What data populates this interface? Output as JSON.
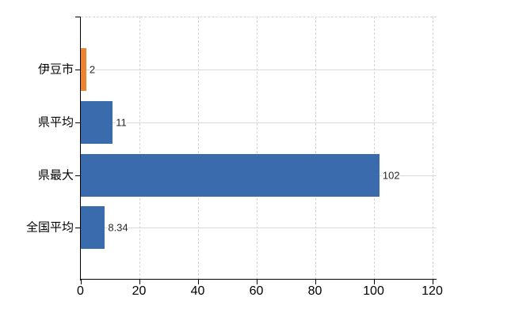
{
  "chart_data": {
    "type": "bar",
    "orientation": "horizontal",
    "title": "",
    "xlabel": "",
    "ylabel": "",
    "categories": [
      "伊豆市",
      "県平均",
      "県最大",
      "全国平均"
    ],
    "values": [
      2,
      11,
      102,
      8.34
    ],
    "value_labels": [
      "2",
      "11",
      "102",
      "8.34"
    ],
    "series": [
      {
        "name": "value",
        "values": [
          2,
          11,
          102,
          8.34
        ],
        "bar_colors": [
          "#ec8532",
          "#3a6bad",
          "#3a6bad",
          "#3a6bad"
        ]
      }
    ],
    "x_ticks": [
      0,
      20,
      40,
      60,
      80,
      100,
      120
    ],
    "x_tick_labels": [
      "0",
      "20",
      "40",
      "60",
      "80",
      "100",
      "120"
    ],
    "xlim": [
      0,
      121.5
    ],
    "grid": true,
    "gridline_style": {
      "horizontal": "solid",
      "vertical": "dashed"
    },
    "legend_position": "none"
  },
  "colors": {
    "bar_blue": "#3a6bad",
    "bar_orange": "#ec8532",
    "gridline_horizontal": "#d7dcd3",
    "gridline_vertical": "#d6d3d6",
    "axis": "#000000",
    "value_label_text": "#262626",
    "background": "#ffffff"
  }
}
